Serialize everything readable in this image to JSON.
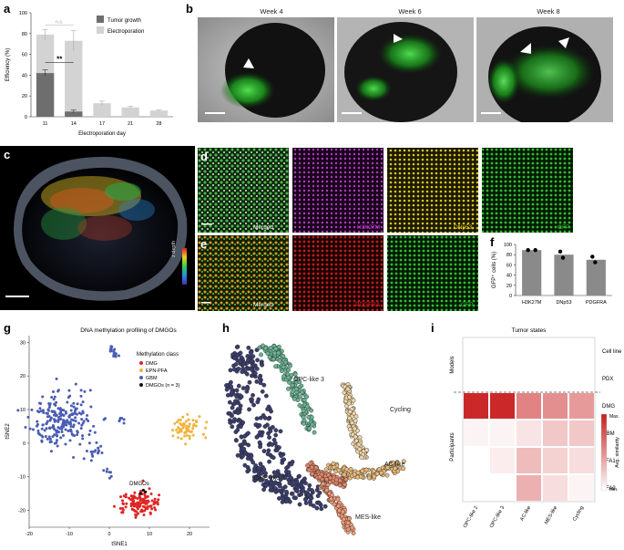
{
  "panel_labels": {
    "a": "a",
    "b": "b",
    "c": "c",
    "d": "d",
    "e": "e",
    "f": "f",
    "g": "g",
    "h": "h",
    "i": "i"
  },
  "colors": {
    "tumor_growth": "#6e6e6e",
    "electroporation": "#d3d3d3",
    "dmg": "#e02424",
    "epn_pfa": "#f2b33d",
    "gbm": "#4a5cb5",
    "dmgo": "#111111",
    "heat_max": "#c81e1e",
    "heat_min": "#ffffff",
    "gfp": "#2fc12f",
    "h3k27m": "#c23bd1",
    "dnp53": "#e4d21e",
    "pdgfra": "#e02020"
  },
  "panel_a": {
    "chart_data": {
      "type": "bar",
      "categories": [
        "11",
        "14",
        "17",
        "21",
        "28"
      ],
      "series": [
        {
          "name": "Tumor growth",
          "values": [
            42,
            5,
            null,
            null,
            null
          ],
          "errors": [
            3,
            1.5,
            null,
            null,
            null
          ]
        },
        {
          "name": "Electroporation",
          "values": [
            79,
            73,
            13,
            9,
            6
          ],
          "errors": [
            5,
            10,
            2,
            1,
            0.5
          ]
        }
      ],
      "ylabel": "Efficiency (%)",
      "xlabel": "Electroporation day",
      "ylim": [
        0,
        100
      ],
      "yticks": [
        "0",
        "20",
        "40",
        "60",
        "80",
        "100"
      ],
      "annotations": {
        "ns": "n.s.",
        "sig": "**"
      },
      "legend_position": "top-right"
    }
  },
  "panel_b": {
    "weeks": [
      "Week 4",
      "Week 6",
      "Week 8"
    ]
  },
  "panel_c": {
    "colorbar_label": "z depth"
  },
  "panel_d": {
    "captions": [
      "Merged",
      "H3K27M",
      "DNp53",
      "GFP"
    ]
  },
  "panel_e": {
    "captions": [
      "Merged",
      "PDGFRA",
      "GFP"
    ]
  },
  "panel_f": {
    "chart_data": {
      "type": "bar",
      "categories": [
        "H3K27M",
        "DNp53",
        "PDGFRA"
      ],
      "values": [
        89,
        80,
        70
      ],
      "points": [
        [
          89,
          89
        ],
        [
          86,
          74
        ],
        [
          76,
          65
        ]
      ],
      "ylabel": "GFP⁺ cells (%)",
      "ylim": [
        0,
        100
      ],
      "yticks": [
        "0",
        "20",
        "40",
        "60",
        "80",
        "100"
      ]
    }
  },
  "panel_g": {
    "chart_data": {
      "type": "scatter",
      "title": "DNA methylation profiling of DMGOs",
      "xlabel": "tSNE1",
      "ylabel": "tSNE2",
      "xlim": [
        -20,
        25
      ],
      "ylim": [
        -25,
        32
      ],
      "xticks": [
        "-20",
        "-10",
        "0",
        "10",
        "20"
      ],
      "yticks": [
        "-20",
        "-10",
        "0",
        "10",
        "20",
        "30"
      ],
      "legend_title": "Methylation class",
      "legend": [
        "DMG",
        "EPN-PFA",
        "GBM",
        "DMGOs (n = 3)"
      ],
      "annotation": "DMGOs",
      "clusters": [
        {
          "class": "GBM",
          "cx": -12,
          "cy": 7,
          "sx": 4,
          "sy": 4,
          "n": 210
        },
        {
          "class": "GBM",
          "cx": -3.5,
          "cy": -3,
          "sx": 1,
          "sy": 1.2,
          "n": 18
        },
        {
          "class": "GBM",
          "cx": 1,
          "cy": 27,
          "sx": 0.8,
          "sy": 1,
          "n": 16
        },
        {
          "class": "GBM",
          "cx": 3,
          "cy": 7,
          "sx": 0.5,
          "sy": 0.5,
          "n": 6
        },
        {
          "class": "GBM",
          "cx": 0,
          "cy": -9,
          "sx": 0.5,
          "sy": 0.8,
          "n": 7
        },
        {
          "class": "EPN-PFA",
          "cx": 19,
          "cy": 4,
          "sx": 2,
          "sy": 2.2,
          "n": 60
        },
        {
          "class": "DMG",
          "cx": 7.5,
          "cy": -18,
          "sx": 2.5,
          "sy": 2,
          "n": 120
        }
      ],
      "dmgos": [
        [
          8.5,
          -14
        ],
        [
          9,
          -14.5
        ],
        [
          7.8,
          -15
        ]
      ]
    }
  },
  "panel_h": {
    "labels": [
      "OPC-like 3",
      "Cycling",
      "AC-like",
      "OPC-like 2",
      "MES-like"
    ]
  },
  "panel_i": {
    "chart_data": {
      "type": "heatmap",
      "title": "Tumor states",
      "columns": [
        "OPC-like 2",
        "OPC-like 3",
        "AC-like",
        "MES-like",
        "Cycling"
      ],
      "rows": [
        "Cell line",
        "PDX",
        "DMG",
        "GBM",
        "PFA1",
        "PFA2"
      ],
      "row_groups": [
        "Models",
        "Participants"
      ],
      "values": [
        [
          null,
          null,
          null,
          null,
          null
        ],
        [
          null,
          null,
          null,
          null,
          null
        ],
        [
          0.95,
          0.95,
          0.55,
          0.5,
          0.45
        ],
        [
          0.05,
          0.05,
          0.12,
          0.25,
          0.25
        ],
        [
          null,
          0.08,
          0.3,
          0.2,
          0.15
        ],
        [
          null,
          null,
          0.35,
          0.15,
          0.05
        ]
      ],
      "colorbar_label": "Avg. similarity",
      "colorbar_max": "Max.",
      "colorbar_min": "Min."
    }
  }
}
